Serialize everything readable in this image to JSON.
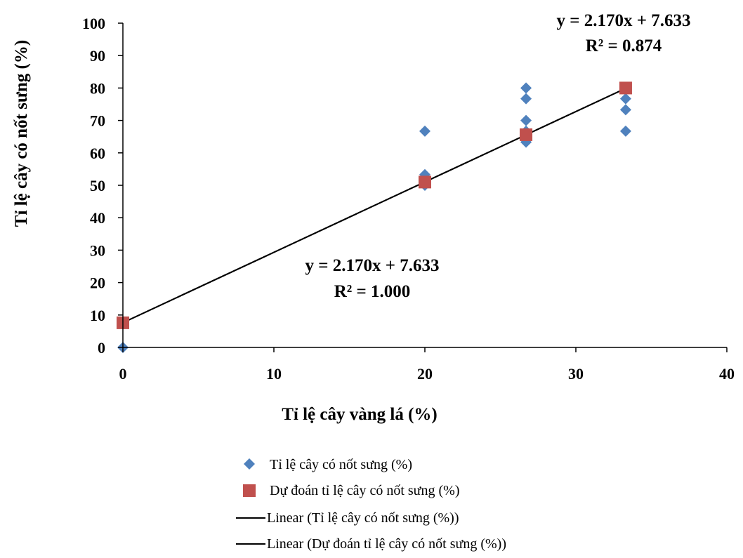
{
  "chart_data": {
    "type": "scatter",
    "xlabel": "Tỉ lệ cây vàng lá (%)",
    "ylabel": "Tỉ lệ cây có nốt sưng (%)",
    "xlim": [
      0,
      40
    ],
    "ylim": [
      0,
      100
    ],
    "xticks": [
      0,
      10,
      20,
      30,
      40
    ],
    "yticks": [
      0,
      10,
      20,
      30,
      40,
      50,
      60,
      70,
      80,
      90,
      100
    ],
    "grid": false,
    "legend_position": "bottom",
    "series": [
      {
        "name": "Tỉ lệ cây có nốt sưng (%)",
        "marker": "diamond",
        "color": "#4F81BD",
        "points": [
          {
            "x": 0,
            "y": 0
          },
          {
            "x": 20,
            "y": 66.7
          },
          {
            "x": 20,
            "y": 53.3
          },
          {
            "x": 20,
            "y": 50
          },
          {
            "x": 26.7,
            "y": 80
          },
          {
            "x": 26.7,
            "y": 76.7
          },
          {
            "x": 26.7,
            "y": 70
          },
          {
            "x": 26.7,
            "y": 66.7
          },
          {
            "x": 26.7,
            "y": 63.3
          },
          {
            "x": 33.3,
            "y": 80
          },
          {
            "x": 33.3,
            "y": 76.7
          },
          {
            "x": 33.3,
            "y": 73.3
          },
          {
            "x": 33.3,
            "y": 66.7
          }
        ]
      },
      {
        "name": "Dự đoán tỉ lệ cây có nốt sưng (%)",
        "marker": "square",
        "color": "#C0504D",
        "points": [
          {
            "x": 0,
            "y": 7.6
          },
          {
            "x": 20,
            "y": 51
          },
          {
            "x": 26.7,
            "y": 65.6
          },
          {
            "x": 33.3,
            "y": 80
          }
        ]
      }
    ],
    "trendlines": [
      {
        "name": "Linear (Tỉ lệ cây có nốt sưng (%))",
        "slope": 2.17,
        "intercept": 7.633,
        "x_range": [
          0,
          33.3
        ],
        "color": "#000000"
      },
      {
        "name": "Linear (Dự đoán tỉ lệ cây có nốt sưng (%))",
        "slope": 2.17,
        "intercept": 7.633,
        "x_range": [
          0,
          33.3
        ],
        "color": "#000000"
      }
    ],
    "annotations": [
      {
        "line1": "y = 2.170x + 7.633",
        "line2": "R² = 0.874",
        "position": "top-right"
      },
      {
        "line1": "y = 2.170x + 7.633",
        "line2": "R² = 1.000",
        "position": "center"
      }
    ]
  }
}
